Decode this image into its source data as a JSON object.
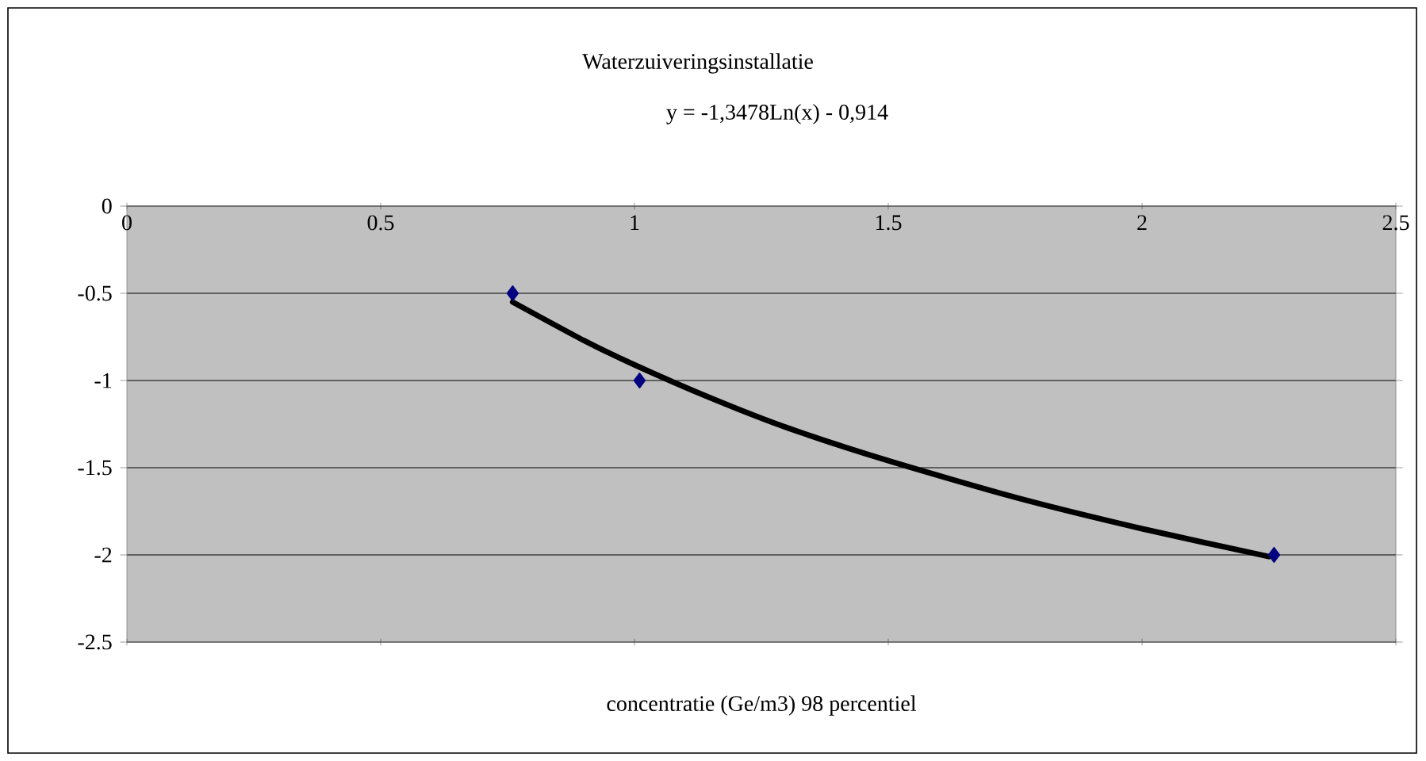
{
  "chart_data": {
    "type": "scatter",
    "title": "Waterzuiveringsinstallatie",
    "annotations": [
      "y = -1,3478Ln(x) - 0,914"
    ],
    "xlabel": "concentratie (Ge/m3) 98 percentiel",
    "xlim": [
      0,
      2.5
    ],
    "xticks": [
      0,
      0.5,
      1,
      1.5,
      2,
      2.5
    ],
    "ylim": [
      -2.5,
      0
    ],
    "yticks": [
      -2.5,
      -2,
      -1.5,
      -1,
      -0.5,
      0
    ],
    "grid": "y",
    "marker": "diamond",
    "series": [
      {
        "color": "#000080",
        "x": [
          0.76,
          1.01,
          2.26
        ],
        "values": [
          -0.5,
          -1,
          -2
        ]
      },
      {
        "type": "line",
        "color": "#000000",
        "marker": "none",
        "line_style": "solid",
        "x": [
          0.76,
          0.9,
          1,
          1.15,
          1.3,
          1.5,
          1.75,
          2,
          2.25
        ],
        "values": [
          -0.55,
          -0.77,
          -0.91,
          -1.1,
          -1.27,
          -1.46,
          -1.67,
          -1.85,
          -2.01
        ]
      }
    ]
  }
}
